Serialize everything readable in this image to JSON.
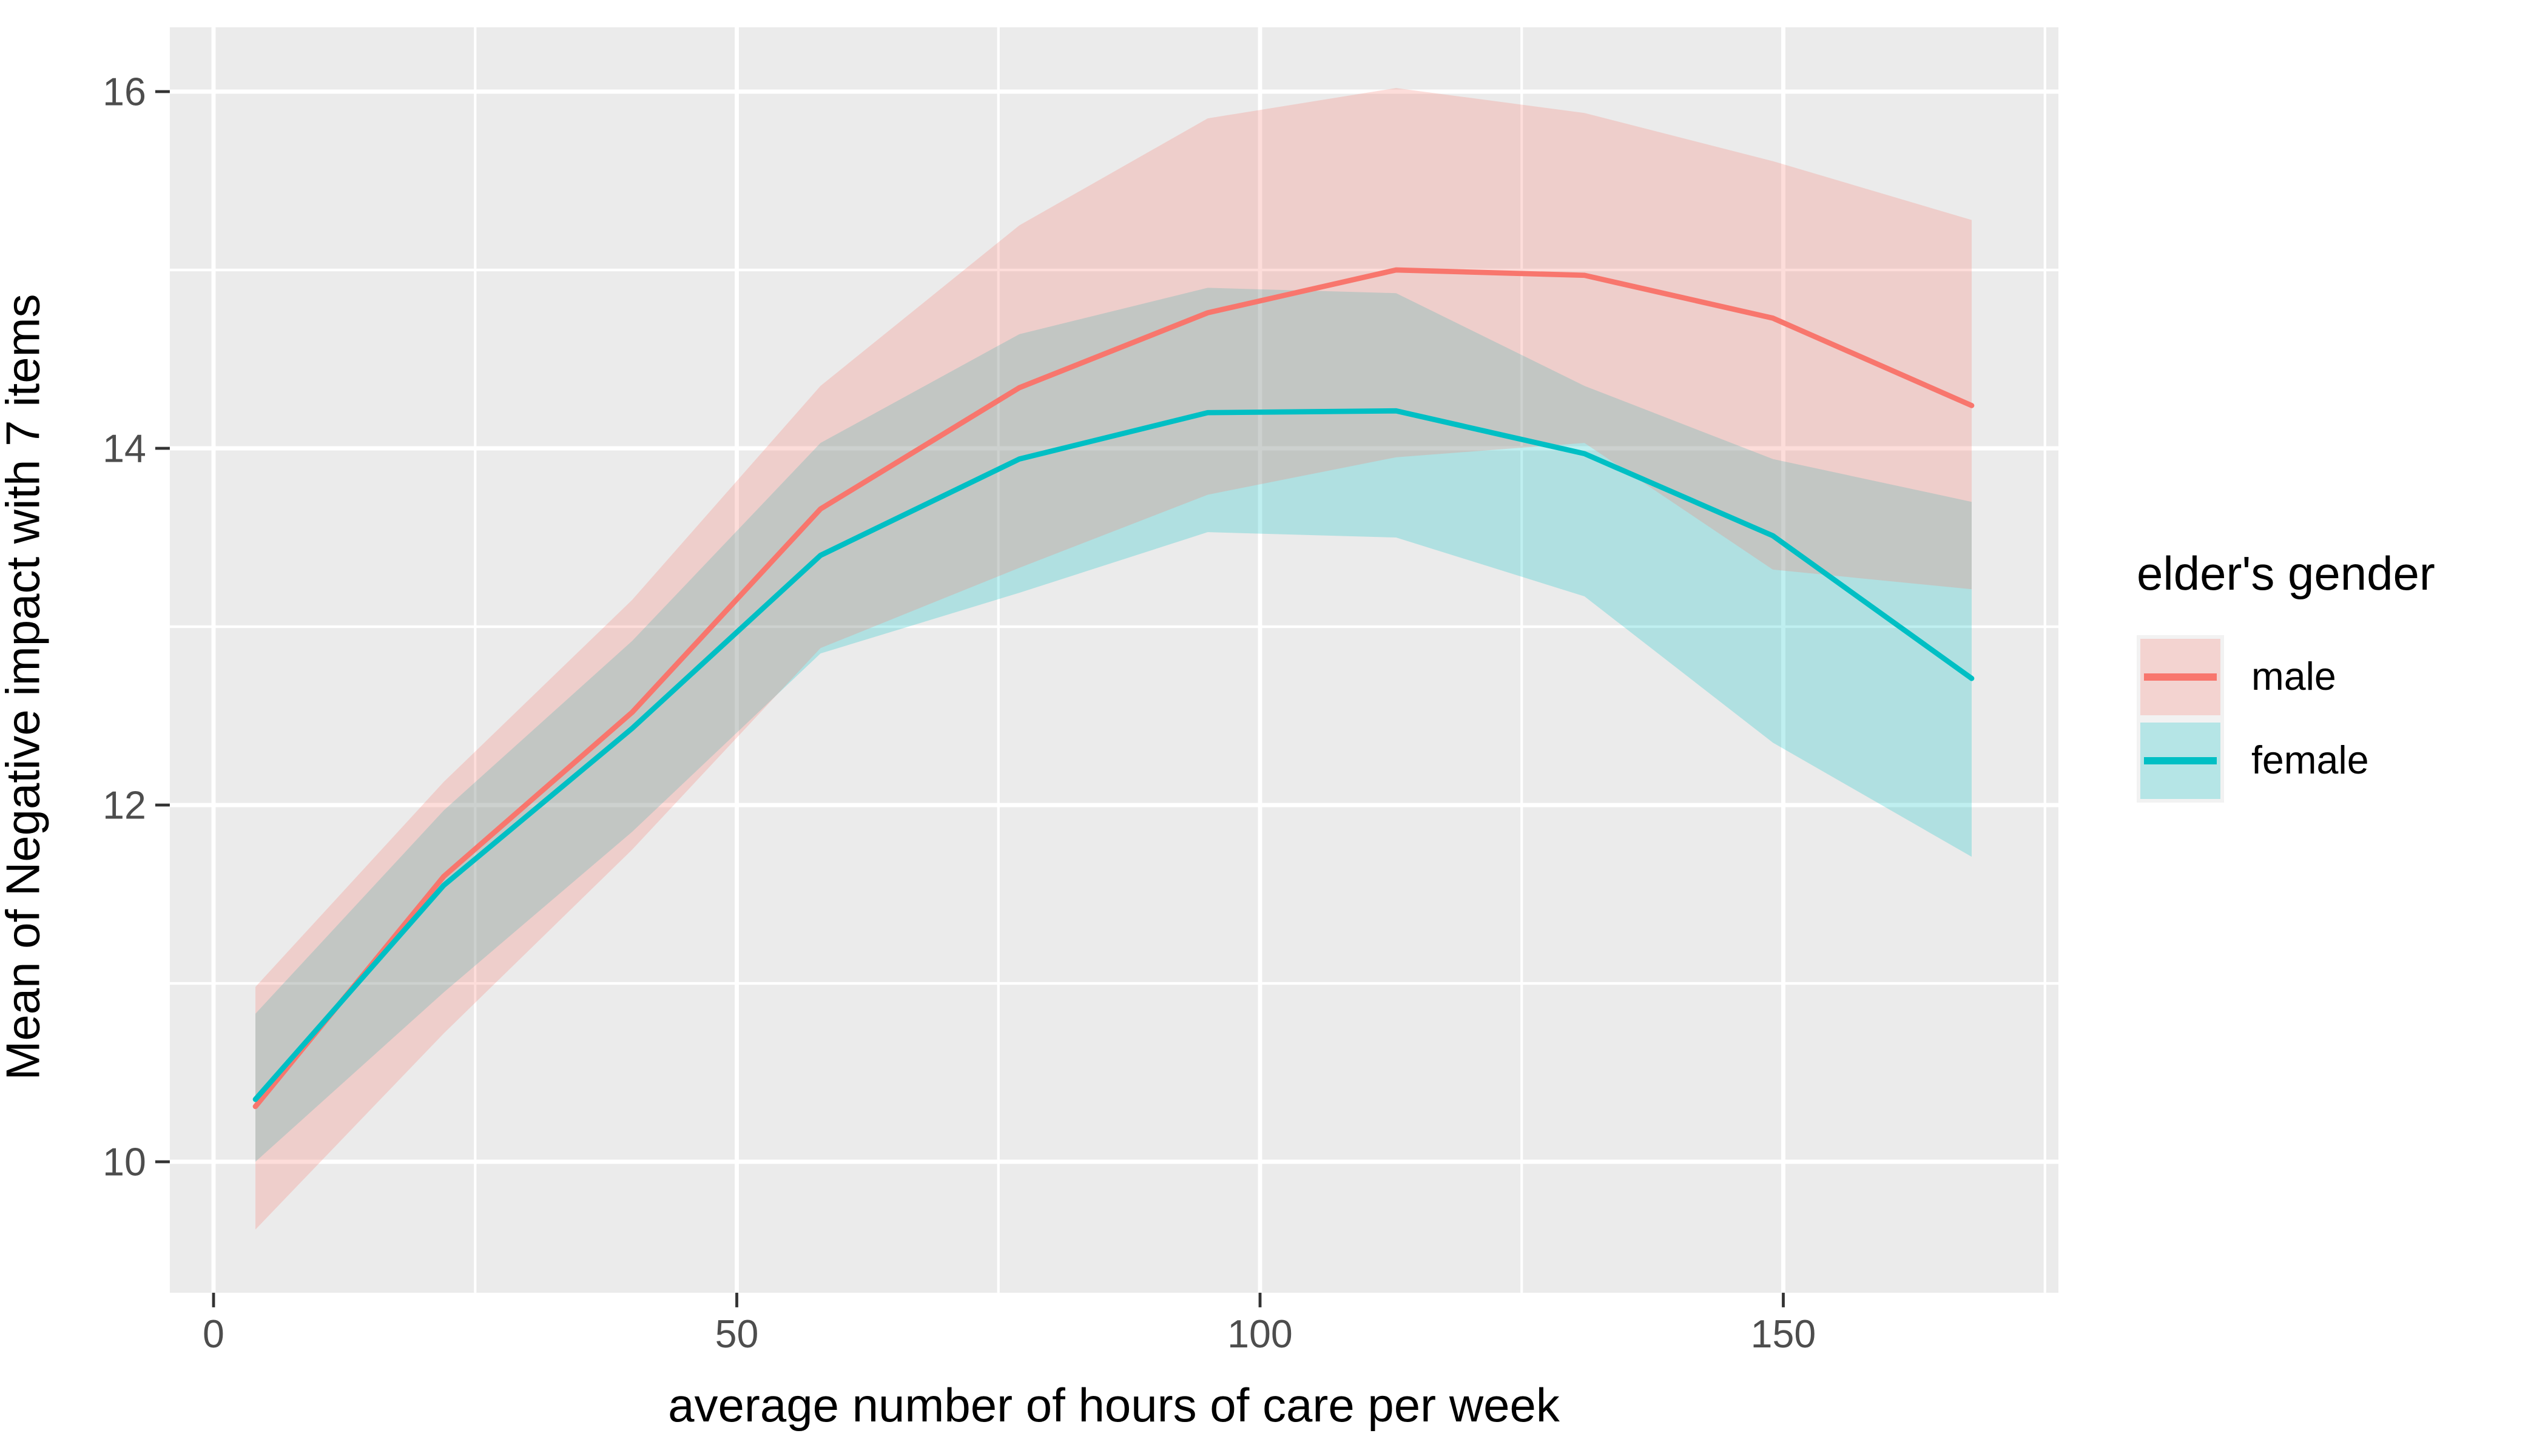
{
  "figure": {
    "background": "#FFFFFF",
    "panel_background": "#EBEBEB",
    "grid_color": "#FFFFFF",
    "tick_mark_color": "#333333",
    "tick_label_color": "#4D4D4D",
    "axis_title_color": "#000000"
  },
  "axes": {
    "x": {
      "title": "average number of hours of care per week",
      "ticks": [
        0,
        50,
        100,
        150
      ],
      "minor_ticks": [
        25,
        75,
        125,
        175
      ]
    },
    "y": {
      "title": "Mean of Negative impact with 7 items",
      "ticks": [
        16,
        14,
        12,
        10
      ],
      "minor_ticks": [
        15,
        13,
        11
      ]
    }
  },
  "legend": {
    "title": "elder's gender",
    "items": [
      {
        "label": "male",
        "line_color": "#F8766D",
        "ribbon_color": "rgba(248,118,109,0.25)"
      },
      {
        "label": "female",
        "line_color": "#00BFC4",
        "ribbon_color": "rgba(0,191,196,0.25)"
      }
    ]
  },
  "chart_data": {
    "type": "line",
    "title": "",
    "xlabel": "average number of hours of care per week",
    "ylabel": "Mean of Negative impact with 7 items",
    "x": [
      4,
      22,
      40,
      58,
      77,
      95,
      113,
      131,
      149,
      168
    ],
    "series": [
      {
        "name": "male",
        "color": "#F8766D",
        "values": [
          10.31,
          11.6,
          12.52,
          13.66,
          14.34,
          14.76,
          15.0,
          14.97,
          14.73,
          14.24
        ],
        "upper": [
          10.98,
          12.13,
          13.15,
          14.35,
          15.25,
          15.85,
          16.02,
          15.88,
          15.61,
          15.28
        ],
        "lower": [
          9.62,
          10.72,
          11.75,
          12.88,
          13.33,
          13.74,
          13.95,
          14.03,
          13.32,
          13.21
        ]
      },
      {
        "name": "female",
        "color": "#00BFC4",
        "values": [
          10.35,
          11.55,
          12.43,
          13.4,
          13.94,
          14.2,
          14.21,
          13.97,
          13.51,
          12.71
        ],
        "upper": [
          10.83,
          11.97,
          12.92,
          14.03,
          14.64,
          14.9,
          14.87,
          14.35,
          13.94,
          13.7
        ],
        "lower": [
          10.0,
          10.95,
          11.85,
          12.85,
          13.19,
          13.53,
          13.5,
          13.17,
          12.35,
          11.71
        ]
      }
    ],
    "xlim": [
      -4.2,
      176.3
    ],
    "ylim": [
      9.27,
      16.35
    ],
    "grid": "on",
    "legend_position": "right",
    "ribbons": true
  }
}
